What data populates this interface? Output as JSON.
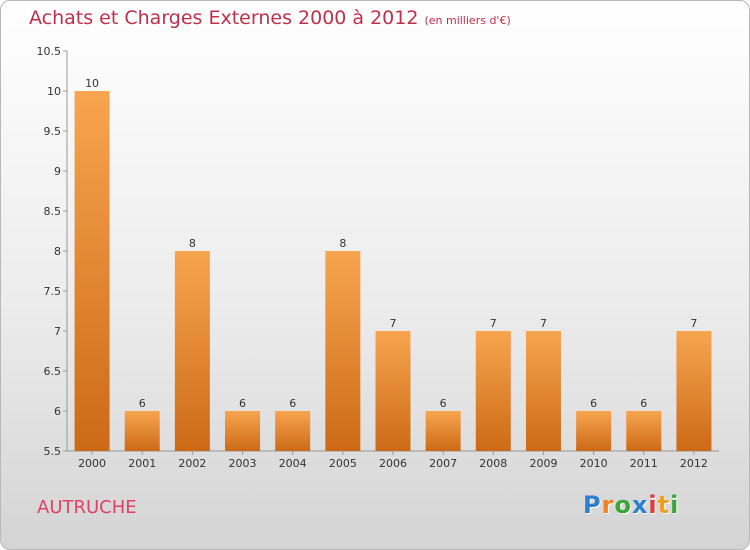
{
  "chart_data": {
    "type": "bar",
    "title": "Achats et Charges Externes 2000 à 2012",
    "unit_note": "(en milliers d'€)",
    "categories": [
      "2000",
      "2001",
      "2002",
      "2003",
      "2004",
      "2005",
      "2006",
      "2007",
      "2008",
      "2009",
      "2010",
      "2011",
      "2012"
    ],
    "values": [
      10,
      6,
      8,
      6,
      6,
      8,
      7,
      6,
      7,
      7,
      6,
      6,
      7
    ],
    "data_labels": [
      "10",
      "6",
      "8",
      "6",
      "6",
      "8",
      "7",
      "6",
      "7",
      "7",
      "6",
      "6",
      "7"
    ],
    "ylim": [
      5.5,
      10.5
    ],
    "yticks": [
      5.5,
      6,
      6.5,
      7,
      7.5,
      8,
      8.5,
      9,
      9.5,
      10,
      10.5
    ],
    "ytick_labels": [
      "5.5",
      "6",
      "6.5",
      "7",
      "7.5",
      "8",
      "8.5",
      "9",
      "9.5",
      "10",
      "10.5"
    ],
    "grid": false,
    "bar_color": "#f0922a",
    "bar_color_dark": "#d06a18"
  },
  "footer": {
    "commune": "AUTRUCHE",
    "logo_letters": [
      "P",
      "r",
      "o",
      "x",
      "i",
      "t",
      "i"
    ],
    "logo_colors": [
      "#2f7fd0",
      "#f08020",
      "#3aa63a",
      "#2f7fd0",
      "#e03c3c",
      "#f0a020",
      "#3aa63a"
    ]
  }
}
